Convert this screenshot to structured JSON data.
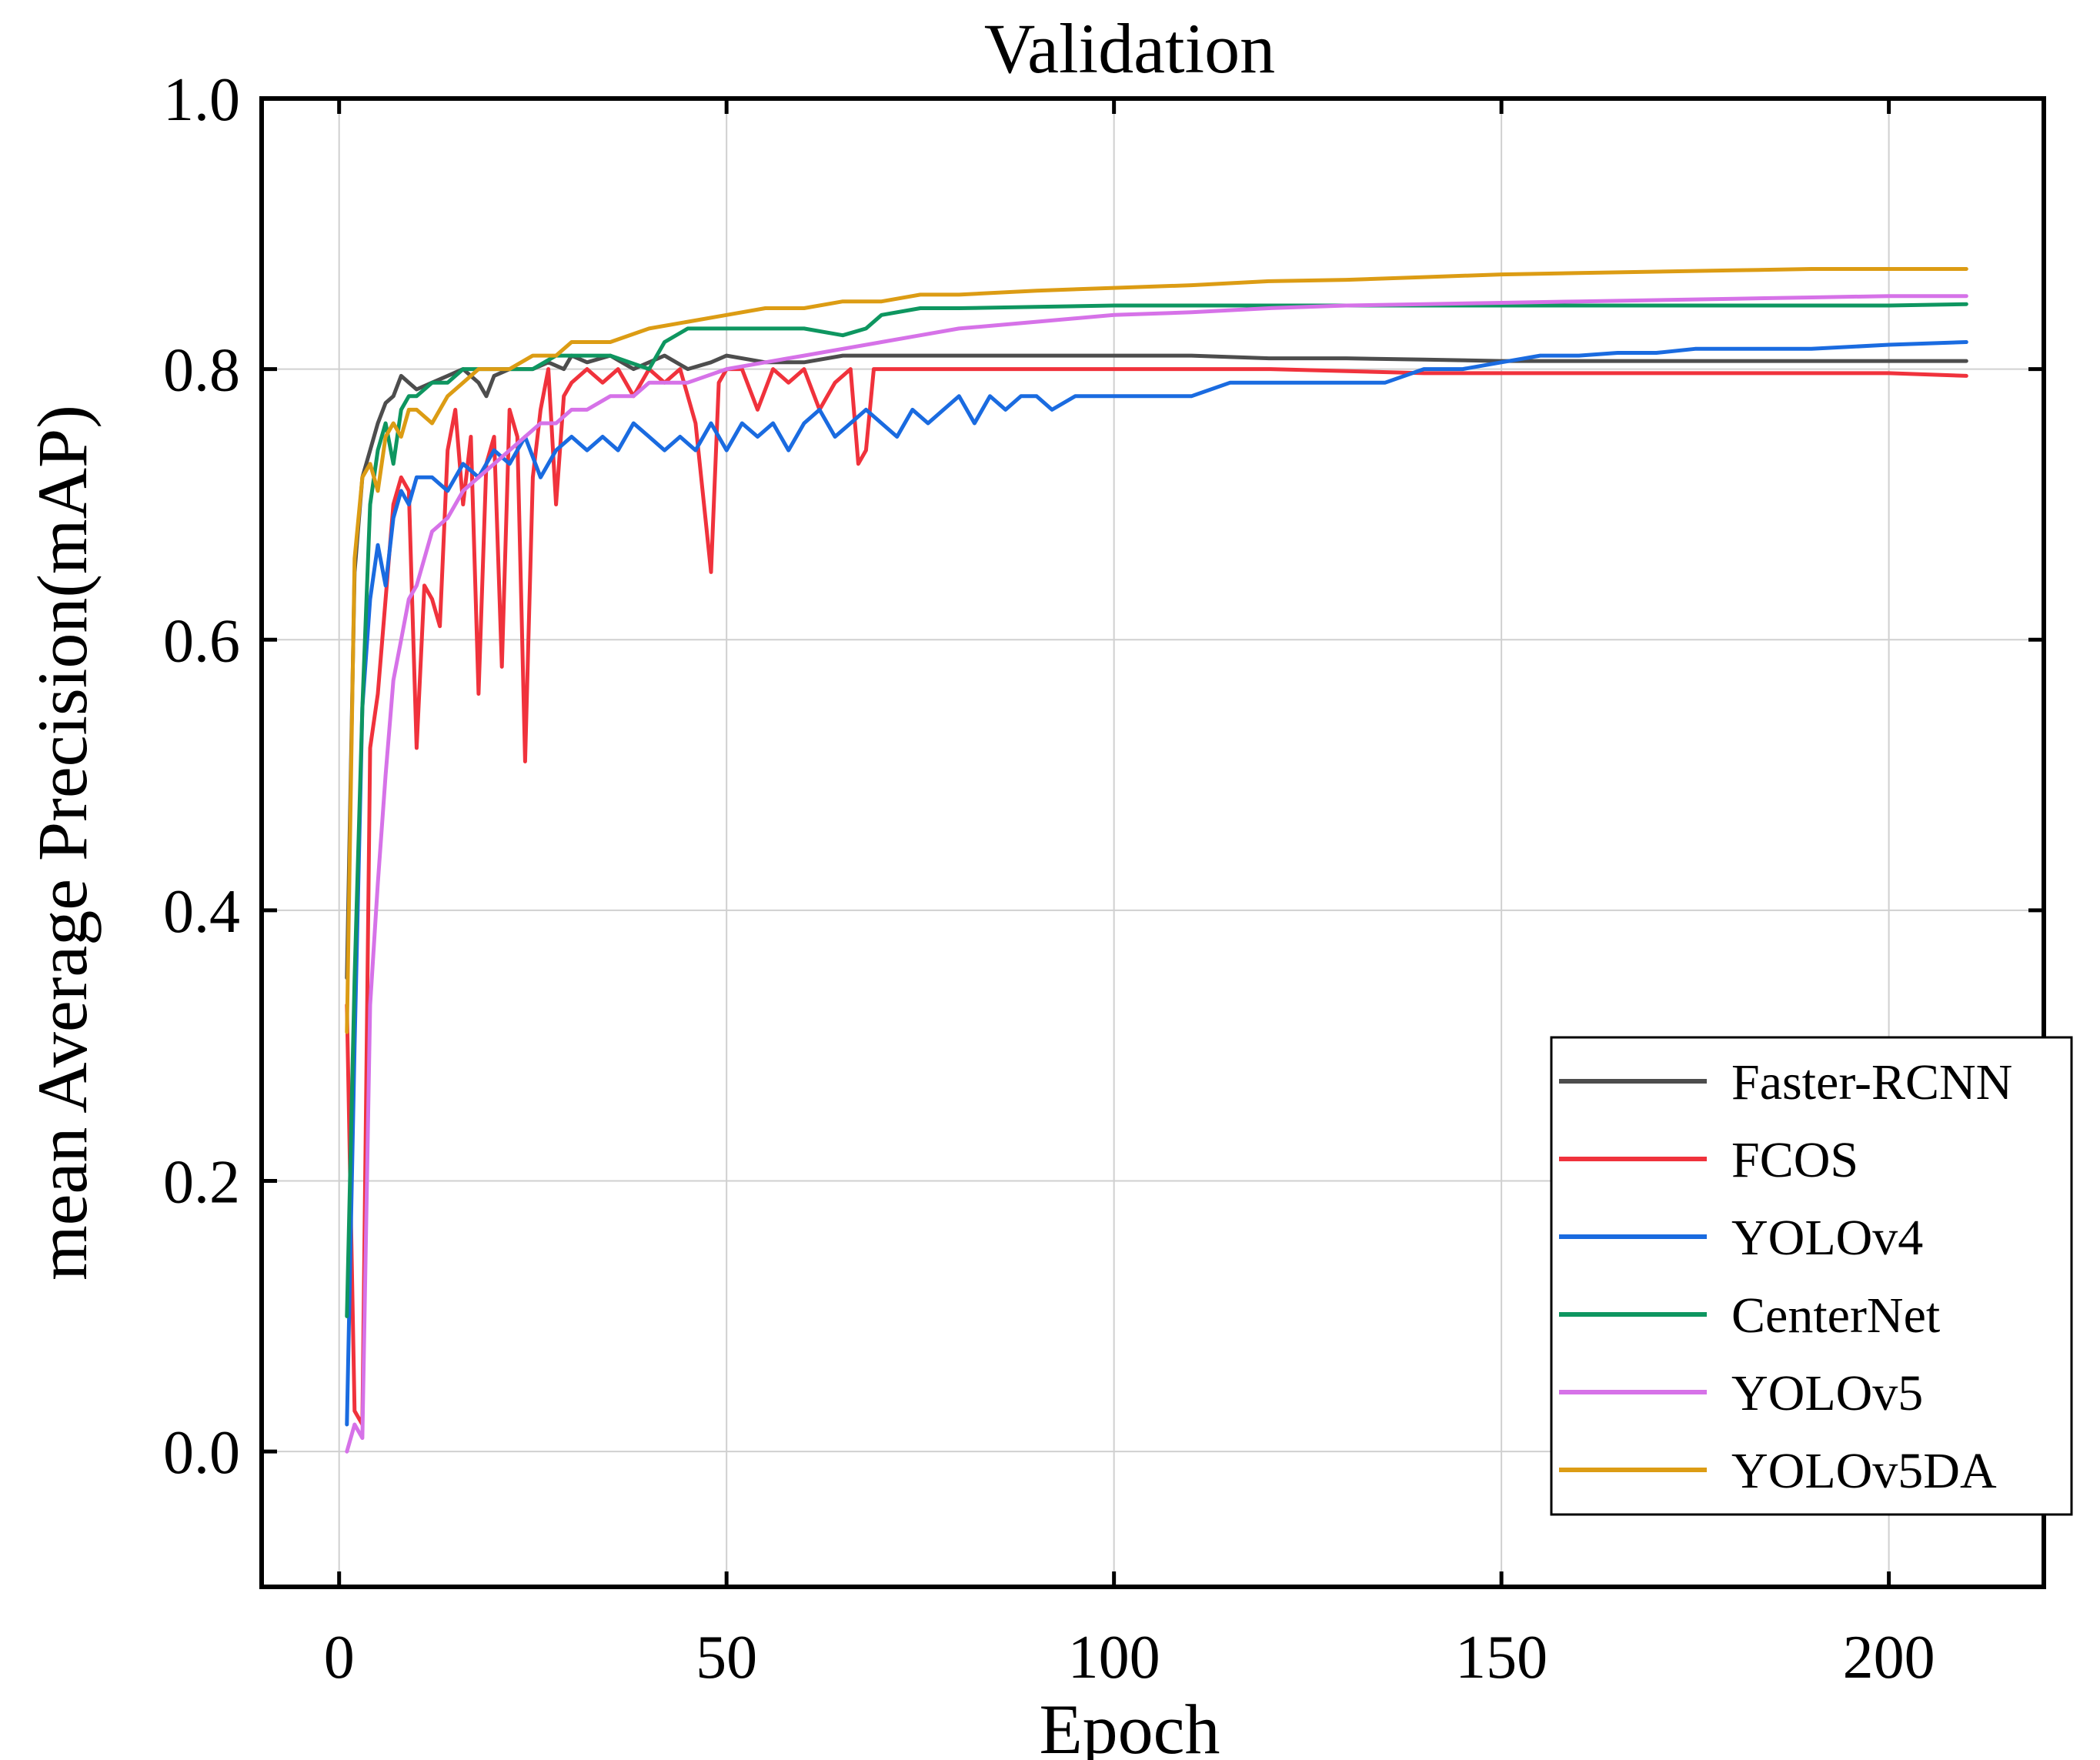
{
  "chart_data": {
    "type": "line",
    "title": "Validation",
    "xlabel": "Epoch",
    "ylabel": "mean Average Precision(mAP)",
    "xlim": [
      -10,
      220
    ],
    "ylim": [
      -0.1,
      1.0
    ],
    "xticks": [
      0,
      50,
      100,
      150,
      200
    ],
    "xtick_labels": [
      "0",
      "50",
      "100",
      "150",
      "200"
    ],
    "yticks": [
      0.0,
      0.2,
      0.4,
      0.6,
      0.8,
      1.0
    ],
    "ytick_labels": [
      "0.0",
      "0.2",
      "0.4",
      "0.6",
      "0.8",
      "1.0"
    ],
    "grid": true,
    "legend_position": "bottom-right",
    "series": [
      {
        "name": "Faster-RCNN",
        "color": "#4d4d4d",
        "x": [
          1,
          2,
          3,
          4,
          5,
          6,
          7,
          8,
          9,
          10,
          12,
          14,
          16,
          18,
          19,
          20,
          22,
          25,
          27,
          29,
          30,
          32,
          35,
          38,
          40,
          42,
          45,
          48,
          50,
          55,
          60,
          65,
          70,
          75,
          80,
          90,
          100,
          110,
          120,
          130,
          140,
          150,
          160,
          170,
          180,
          190,
          200,
          210
        ],
        "values": [
          0.35,
          0.65,
          0.72,
          0.74,
          0.76,
          0.775,
          0.78,
          0.795,
          0.79,
          0.785,
          0.79,
          0.795,
          0.8,
          0.79,
          0.78,
          0.795,
          0.8,
          0.8,
          0.805,
          0.8,
          0.81,
          0.805,
          0.81,
          0.8,
          0.805,
          0.81,
          0.8,
          0.805,
          0.81,
          0.805,
          0.805,
          0.81,
          0.81,
          0.81,
          0.81,
          0.81,
          0.81,
          0.81,
          0.808,
          0.808,
          0.807,
          0.806,
          0.806,
          0.806,
          0.806,
          0.806,
          0.806,
          0.806
        ]
      },
      {
        "name": "FCOS",
        "color": "#f0323c",
        "x": [
          1,
          2,
          3,
          4,
          5,
          6,
          7,
          8,
          9,
          10,
          11,
          12,
          13,
          14,
          15,
          16,
          17,
          18,
          19,
          20,
          21,
          22,
          23,
          24,
          25,
          26,
          27,
          28,
          29,
          30,
          32,
          34,
          36,
          38,
          40,
          42,
          44,
          46,
          48,
          49,
          50,
          52,
          54,
          56,
          58,
          60,
          62,
          64,
          66,
          67,
          68,
          69,
          70,
          80,
          100,
          120,
          140,
          160,
          180,
          200,
          210
        ],
        "values": [
          0.33,
          0.03,
          0.02,
          0.52,
          0.56,
          0.63,
          0.7,
          0.72,
          0.71,
          0.52,
          0.64,
          0.63,
          0.61,
          0.74,
          0.77,
          0.7,
          0.75,
          0.56,
          0.73,
          0.75,
          0.58,
          0.77,
          0.75,
          0.51,
          0.72,
          0.77,
          0.8,
          0.7,
          0.78,
          0.79,
          0.8,
          0.79,
          0.8,
          0.78,
          0.8,
          0.79,
          0.8,
          0.76,
          0.65,
          0.79,
          0.8,
          0.8,
          0.77,
          0.8,
          0.79,
          0.8,
          0.77,
          0.79,
          0.8,
          0.73,
          0.74,
          0.8,
          0.8,
          0.8,
          0.8,
          0.8,
          0.797,
          0.797,
          0.797,
          0.797,
          0.795
        ]
      },
      {
        "name": "YOLOv4",
        "color": "#1a6be0",
        "x": [
          1,
          2,
          3,
          4,
          5,
          6,
          7,
          8,
          9,
          10,
          12,
          14,
          16,
          18,
          20,
          22,
          24,
          26,
          28,
          30,
          32,
          34,
          36,
          38,
          40,
          42,
          44,
          46,
          48,
          50,
          52,
          54,
          56,
          58,
          60,
          62,
          64,
          66,
          68,
          70,
          72,
          74,
          76,
          78,
          80,
          82,
          84,
          86,
          88,
          90,
          92,
          95,
          100,
          105,
          110,
          115,
          120,
          125,
          130,
          135,
          140,
          145,
          150,
          155,
          160,
          165,
          170,
          175,
          180,
          190,
          200,
          210
        ],
        "values": [
          0.02,
          0.3,
          0.55,
          0.63,
          0.67,
          0.64,
          0.69,
          0.71,
          0.7,
          0.72,
          0.72,
          0.71,
          0.73,
          0.72,
          0.74,
          0.73,
          0.75,
          0.72,
          0.74,
          0.75,
          0.74,
          0.75,
          0.74,
          0.76,
          0.75,
          0.74,
          0.75,
          0.74,
          0.76,
          0.74,
          0.76,
          0.75,
          0.76,
          0.74,
          0.76,
          0.77,
          0.75,
          0.76,
          0.77,
          0.76,
          0.75,
          0.77,
          0.76,
          0.77,
          0.78,
          0.76,
          0.78,
          0.77,
          0.78,
          0.78,
          0.77,
          0.78,
          0.78,
          0.78,
          0.78,
          0.79,
          0.79,
          0.79,
          0.79,
          0.79,
          0.8,
          0.8,
          0.805,
          0.81,
          0.81,
          0.812,
          0.812,
          0.815,
          0.815,
          0.815,
          0.818,
          0.82
        ]
      },
      {
        "name": "CenterNet",
        "color": "#0e9660",
        "x": [
          1,
          2,
          3,
          4,
          5,
          6,
          7,
          8,
          9,
          10,
          12,
          14,
          16,
          18,
          20,
          22,
          25,
          28,
          30,
          35,
          40,
          42,
          45,
          50,
          55,
          60,
          65,
          68,
          70,
          75,
          80,
          90,
          100,
          110,
          120,
          130,
          140,
          150,
          160,
          170,
          180,
          190,
          200,
          210
        ],
        "values": [
          0.1,
          0.35,
          0.55,
          0.7,
          0.74,
          0.76,
          0.73,
          0.77,
          0.78,
          0.78,
          0.79,
          0.79,
          0.8,
          0.8,
          0.8,
          0.8,
          0.8,
          0.81,
          0.81,
          0.81,
          0.8,
          0.82,
          0.83,
          0.83,
          0.83,
          0.83,
          0.825,
          0.83,
          0.84,
          0.845,
          0.845,
          0.846,
          0.847,
          0.847,
          0.847,
          0.847,
          0.847,
          0.847,
          0.847,
          0.847,
          0.847,
          0.847,
          0.847,
          0.848
        ]
      },
      {
        "name": "YOLOv5",
        "color": "#d672e8",
        "x": [
          1,
          2,
          3,
          4,
          5,
          6,
          7,
          8,
          9,
          10,
          12,
          14,
          16,
          18,
          20,
          22,
          24,
          26,
          28,
          30,
          32,
          35,
          38,
          40,
          45,
          50,
          55,
          60,
          65,
          70,
          75,
          80,
          90,
          100,
          110,
          120,
          130,
          140,
          150,
          160,
          170,
          180,
          190,
          200,
          210
        ],
        "values": [
          0.0,
          0.02,
          0.01,
          0.33,
          0.42,
          0.5,
          0.57,
          0.6,
          0.63,
          0.64,
          0.68,
          0.69,
          0.71,
          0.72,
          0.73,
          0.74,
          0.75,
          0.76,
          0.76,
          0.77,
          0.77,
          0.78,
          0.78,
          0.79,
          0.79,
          0.8,
          0.805,
          0.81,
          0.815,
          0.82,
          0.825,
          0.83,
          0.835,
          0.84,
          0.842,
          0.845,
          0.847,
          0.848,
          0.849,
          0.85,
          0.851,
          0.852,
          0.853,
          0.854,
          0.854
        ]
      },
      {
        "name": "YOLOv5DA",
        "color": "#dc9c14",
        "x": [
          1,
          2,
          3,
          4,
          5,
          6,
          7,
          8,
          9,
          10,
          12,
          14,
          16,
          18,
          20,
          22,
          25,
          28,
          30,
          35,
          40,
          45,
          50,
          55,
          60,
          65,
          70,
          75,
          80,
          90,
          100,
          110,
          120,
          130,
          140,
          150,
          160,
          170,
          180,
          190,
          200,
          210
        ],
        "values": [
          0.31,
          0.66,
          0.72,
          0.73,
          0.71,
          0.75,
          0.76,
          0.75,
          0.77,
          0.77,
          0.76,
          0.78,
          0.79,
          0.8,
          0.8,
          0.8,
          0.81,
          0.81,
          0.82,
          0.82,
          0.83,
          0.835,
          0.84,
          0.845,
          0.845,
          0.85,
          0.85,
          0.855,
          0.855,
          0.858,
          0.86,
          0.862,
          0.865,
          0.866,
          0.868,
          0.87,
          0.871,
          0.872,
          0.873,
          0.874,
          0.874,
          0.874
        ]
      }
    ]
  }
}
